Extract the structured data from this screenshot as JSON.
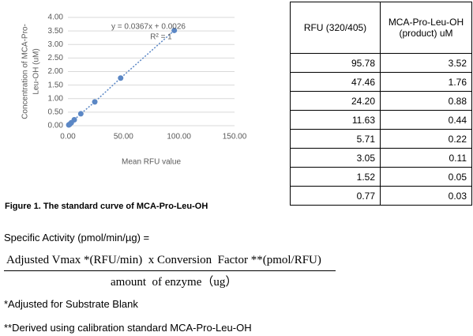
{
  "chart_data": {
    "type": "scatter",
    "x_label": "Mean RFU value",
    "y_label": [
      "Concentration of MCA-Pro-",
      "Leu-OH (uM)"
    ],
    "annotations": [
      "y = 0.0367x + 0.0026",
      "R² = 1"
    ],
    "series": [
      {
        "color": "#5b87c5",
        "x": [
          95.78,
          47.46,
          24.2,
          11.63,
          5.71,
          3.05,
          1.52,
          0.77
        ],
        "values": [
          3.52,
          1.76,
          0.88,
          0.44,
          0.22,
          0.11,
          0.05,
          0.03
        ]
      }
    ],
    "xlim": [
      0,
      150
    ],
    "xticks": [
      {
        "value": 0,
        "label": "0.00"
      },
      {
        "value": 50,
        "label": "50.00"
      },
      {
        "value": 100,
        "label": "100.00"
      },
      {
        "value": 150,
        "label": "150.00"
      }
    ],
    "ylim": [
      0,
      4
    ],
    "yticks": [
      {
        "value": 0,
        "label": "0.00"
      },
      {
        "value": 0.5,
        "label": "0.50"
      },
      {
        "value": 1,
        "label": "1.00"
      },
      {
        "value": 1.5,
        "label": "1.50"
      },
      {
        "value": 2,
        "label": "2.00"
      },
      {
        "value": 2.5,
        "label": "2.50"
      },
      {
        "value": 3,
        "label": "3.00"
      },
      {
        "value": 3.5,
        "label": "3.50"
      },
      {
        "value": 4,
        "label": "4.00"
      }
    ],
    "grid": true,
    "trendline": true
  },
  "caption": "Figure 1. The standard curve of MCA-Pro-Leu-OH",
  "table": {
    "header": [
      "RFU (320/405)",
      "MCA-Pro-Leu-OH (product) uM"
    ],
    "rows": [
      [
        "95.78",
        "3.52"
      ],
      [
        "47.46",
        "1.76"
      ],
      [
        "24.20",
        "0.88"
      ],
      [
        "11.63",
        "0.44"
      ],
      [
        "5.71",
        "0.22"
      ],
      [
        "3.05",
        "0.11"
      ],
      [
        "1.52",
        "0.05"
      ],
      [
        "0.77",
        "0.03"
      ]
    ]
  },
  "formula": {
    "label": "Specific Activity (pmol/min/µg) =",
    "numerator": "Adjusted Vmax *(RFU/min)  x Conversion  Factor **(pmol/RFU)",
    "denominator": "amount  of enzyme（ug）"
  },
  "notes": [
    "*Adjusted for Substrate Blank",
    "**Derived using calibration standard MCA-Pro-Leu-OH"
  ]
}
